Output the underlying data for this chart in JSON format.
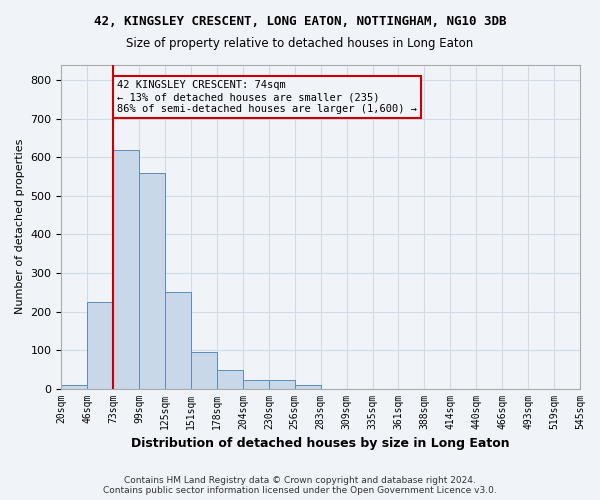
{
  "title": "42, KINGSLEY CRESCENT, LONG EATON, NOTTINGHAM, NG10 3DB",
  "subtitle": "Size of property relative to detached houses in Long Eaton",
  "xlabel": "Distribution of detached houses by size in Long Eaton",
  "ylabel": "Number of detached properties",
  "bar_values": [
    8,
    225,
    620,
    560,
    250,
    95,
    48,
    22,
    22,
    8,
    0,
    0,
    0,
    0,
    0,
    0,
    0,
    0,
    0,
    0
  ],
  "bin_labels": [
    "20sqm",
    "46sqm",
    "73sqm",
    "99sqm",
    "125sqm",
    "151sqm",
    "178sqm",
    "204sqm",
    "230sqm",
    "256sqm",
    "283sqm",
    "309sqm",
    "335sqm",
    "361sqm",
    "388sqm",
    "414sqm",
    "440sqm",
    "466sqm",
    "493sqm",
    "519sqm"
  ],
  "extra_label": "545sqm",
  "bar_color": "#c8d8e8",
  "bar_edge_color": "#5b8db8",
  "grid_color": "#d0dce8",
  "background_color": "#f0f4f8",
  "annotation_box_color": "#cc0000",
  "property_line_x": 2,
  "annotation_text": "42 KINGSLEY CRESCENT: 74sqm\n← 13% of detached houses are smaller (235)\n86% of semi-detached houses are larger (1,600) →",
  "footer_text": "Contains HM Land Registry data © Crown copyright and database right 2024.\nContains public sector information licensed under the Open Government Licence v3.0.",
  "ylim": [
    0,
    840
  ],
  "yticks": [
    0,
    100,
    200,
    300,
    400,
    500,
    600,
    700,
    800
  ],
  "all_xtick_labels": [
    "20sqm",
    "46sqm",
    "73sqm",
    "99sqm",
    "125sqm",
    "151sqm",
    "178sqm",
    "204sqm",
    "230sqm",
    "256sqm",
    "283sqm",
    "309sqm",
    "335sqm",
    "361sqm",
    "388sqm",
    "414sqm",
    "440sqm",
    "466sqm",
    "493sqm",
    "519sqm",
    "545sqm"
  ]
}
